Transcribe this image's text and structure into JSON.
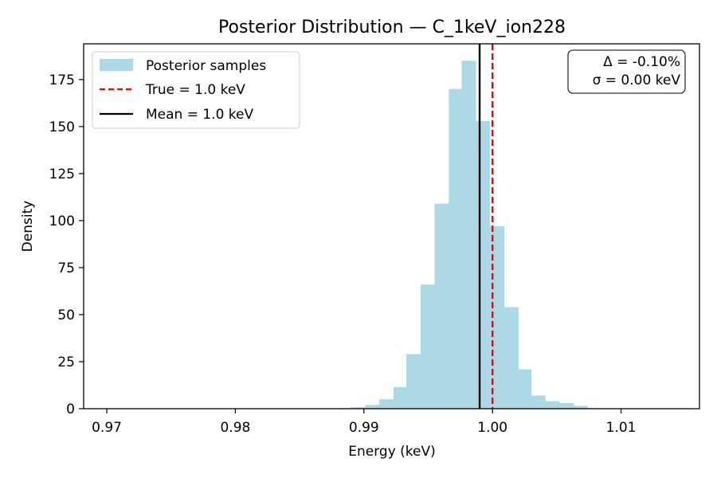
{
  "chart_data": {
    "type": "histogram",
    "title": "Posterior Distribution — C_1keV_ion228",
    "xlabel": "Energy (keV)",
    "ylabel": "Density",
    "xlim": [
      0.9682,
      1.0161
    ],
    "ylim": [
      0,
      194
    ],
    "xticks": [
      0.97,
      0.98,
      0.99,
      1.0,
      1.01
    ],
    "xtick_labels": [
      "0.97",
      "0.98",
      "0.99",
      "1.00",
      "1.01"
    ],
    "yticks": [
      0,
      25,
      50,
      75,
      100,
      125,
      150,
      175
    ],
    "ytick_labels": [
      "0",
      "25",
      "50",
      "75",
      "100",
      "125",
      "150",
      "175"
    ],
    "bin_edges": [
      0.9869,
      0.9879,
      0.989,
      0.9901,
      0.9912,
      0.9923,
      0.9933,
      0.9944,
      0.9955,
      0.9966,
      0.9976,
      0.9987,
      0.9998,
      1.0009,
      1.002,
      1.003,
      1.0041,
      1.0052,
      1.0063,
      1.0074,
      1.0084
    ],
    "values": [
      0.2,
      0.3,
      0.8,
      2.0,
      5.0,
      11.5,
      29.0,
      66.0,
      109.0,
      170.0,
      185.0,
      153.0,
      97.0,
      54.0,
      21.0,
      7.0,
      4.0,
      3.0,
      1.5,
      0.3
    ],
    "bar_color": "#add8e6",
    "vlines": [
      {
        "x": 1.0,
        "color": "#ff0000",
        "style": "dashed"
      },
      {
        "x": 0.999,
        "color": "#000000",
        "style": "solid"
      }
    ],
    "legend": {
      "position": "top-left",
      "entries": [
        {
          "label": "Posterior samples",
          "kind": "patch",
          "color": "#add8e6"
        },
        {
          "label": "True = 1.0 keV",
          "kind": "dashed-line",
          "color": "#ff0000"
        },
        {
          "label": "Mean = 1.0 keV",
          "kind": "line",
          "color": "#000000"
        }
      ]
    },
    "annotation": {
      "position": "top-right",
      "lines": [
        "Δ = -0.10%",
        "σ = 0.00 keV"
      ]
    },
    "grid": false
  }
}
